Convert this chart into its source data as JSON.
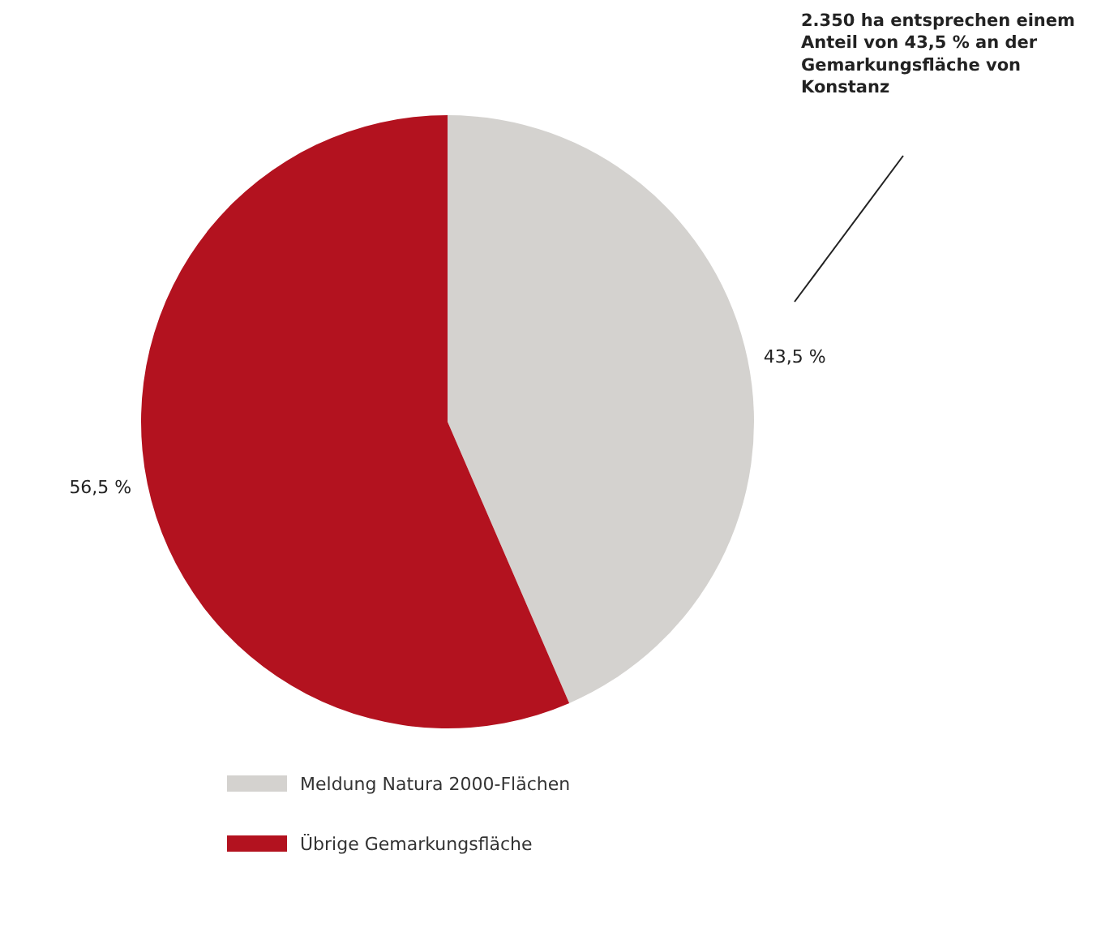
{
  "chart_data": {
    "type": "pie",
    "categories": [
      "Meldung Natura 2000-Flächen",
      "Übrige Gemarkungsfläche"
    ],
    "values": [
      43.5,
      56.5
    ],
    "colors": [
      "#d4d2cf",
      "#b3121f"
    ],
    "value_labels": [
      "43,5 %",
      "56,5 %"
    ],
    "legend": "bottom",
    "annotations": [
      "2.350 ha entsprechen einem Anteil von 43,5 % an der Gemarkungsfläche von Konstanz"
    ]
  }
}
